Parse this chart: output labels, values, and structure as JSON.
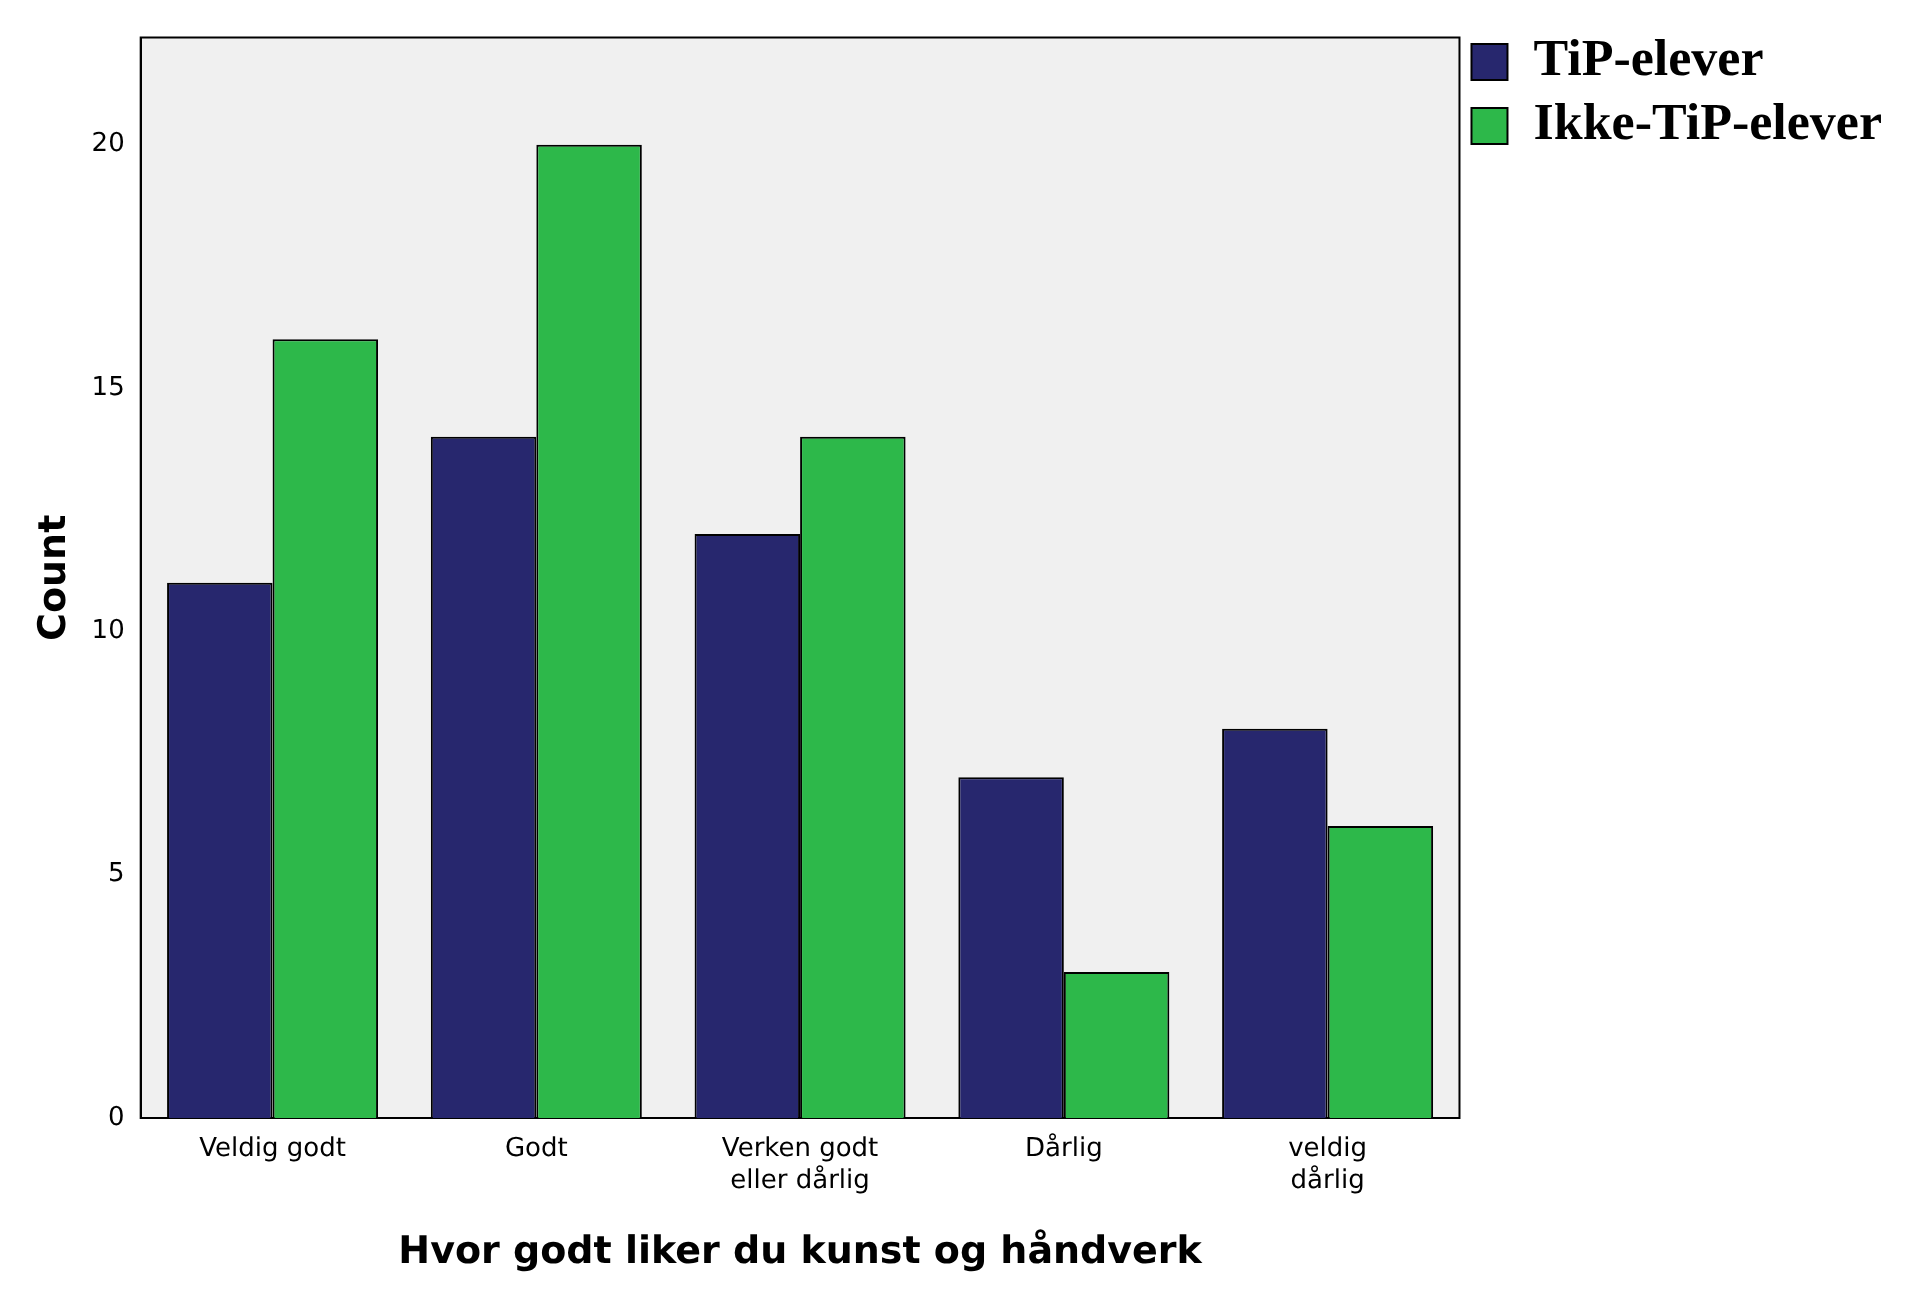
{
  "chart_data": {
    "type": "bar",
    "xlabel": "Hvor godt liker du kunst og håndverk",
    "ylabel": "Count",
    "categories": [
      "Veldig godt",
      "Godt",
      "Verken godt eller dårlig",
      "Dårlig",
      "veldig dårlig"
    ],
    "series": [
      {
        "name": "TiP-elever",
        "color": "#27276e",
        "values": [
          11,
          14,
          12,
          7,
          8
        ]
      },
      {
        "name": "Ikke-TiP-elever",
        "color": "#2db84a",
        "values": [
          16,
          20,
          14,
          3,
          6
        ]
      }
    ],
    "ylim": [
      0,
      22.2
    ],
    "yticks": [
      0,
      5,
      10,
      15,
      20
    ],
    "grid": false,
    "legend": "top right"
  }
}
